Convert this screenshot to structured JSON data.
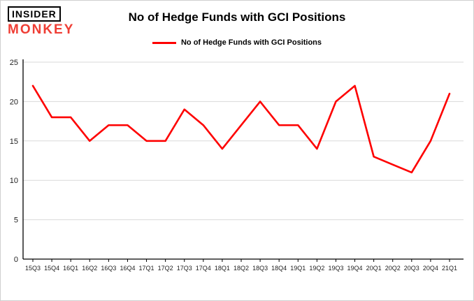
{
  "logo": {
    "line1": "INSIDER",
    "line2": "MONKEY",
    "accent_color": "#ef3e35"
  },
  "title": "No of Hedge Funds with GCI Positions",
  "legend": {
    "label": "No of Hedge Funds with GCI Positions",
    "color": "#fe0000"
  },
  "chart_data": {
    "type": "line",
    "title": "No of Hedge Funds with GCI Positions",
    "categories": [
      "15Q3",
      "15Q4",
      "16Q1",
      "16Q2",
      "16Q3",
      "16Q4",
      "17Q1",
      "17Q2",
      "17Q3",
      "17Q4",
      "18Q1",
      "18Q2",
      "18Q3",
      "18Q4",
      "19Q1",
      "19Q2",
      "19Q3",
      "19Q4",
      "20Q1",
      "20Q2",
      "20Q3",
      "20Q4",
      "21Q1"
    ],
    "values": [
      22,
      18,
      18,
      15,
      17,
      17,
      15,
      15,
      19,
      17,
      14,
      17,
      20,
      17,
      17,
      14,
      20,
      22,
      13,
      12,
      11,
      15,
      21
    ],
    "series_color": "#fe0000",
    "xlabel": "",
    "ylabel": "",
    "ylim": [
      0,
      25
    ],
    "ytick_step": 5,
    "yticks": [
      0,
      5,
      10,
      15,
      20,
      25
    ],
    "grid": true,
    "grid_color": "#d9d9d9",
    "axis_color": "#000000",
    "tick_label_color": "#222222",
    "legend_position": "top"
  }
}
